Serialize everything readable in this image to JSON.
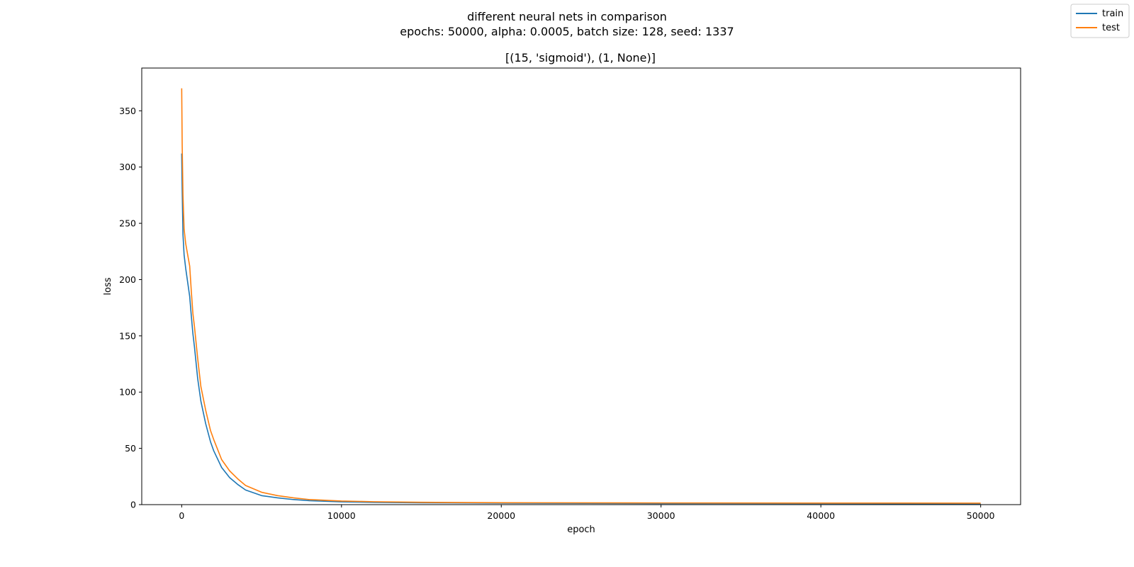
{
  "figure": {
    "suptitle_line1": "different neural nets in comparison",
    "suptitle_line2": "epochs: 50000, alpha: 0.0005, batch size: 128, seed: 1337"
  },
  "legend": {
    "placement": "top-right",
    "items": [
      {
        "label": "train",
        "color": "#1f77b4"
      },
      {
        "label": "test",
        "color": "#ff7f0e"
      }
    ]
  },
  "chart_data": {
    "type": "line",
    "title": "[(15, 'sigmoid'), (1, None)]",
    "xlabel": "epoch",
    "ylabel": "loss",
    "xlim": [
      -2500,
      52500
    ],
    "ylim": [
      0,
      388
    ],
    "xticks": [
      0,
      10000,
      20000,
      30000,
      40000,
      50000
    ],
    "xtick_labels": [
      "0",
      "10000",
      "20000",
      "30000",
      "40000",
      "50000"
    ],
    "yticks": [
      0,
      50,
      100,
      150,
      200,
      250,
      300,
      350
    ],
    "ytick_labels": [
      "0",
      "50",
      "100",
      "150",
      "200",
      "250",
      "300",
      "350"
    ],
    "grid": false,
    "series": [
      {
        "name": "train",
        "color": "#1f77b4",
        "x": [
          0,
          30,
          80,
          150,
          250,
          400,
          500,
          600,
          700,
          800,
          1000,
          1200,
          1500,
          1800,
          2000,
          2500,
          3000,
          3500,
          4000,
          5000,
          6000,
          7000,
          8000,
          10000,
          12000,
          15000,
          20000,
          30000,
          40000,
          50000
        ],
        "y": [
          312,
          280,
          240,
          222,
          210,
          195,
          185,
          168,
          152,
          140,
          112,
          92,
          72,
          56,
          48,
          33,
          24,
          18,
          13,
          8,
          6,
          4.5,
          3.5,
          2.5,
          2,
          1.6,
          1.3,
          1.0,
          0.9,
          0.8
        ]
      },
      {
        "name": "test",
        "color": "#ff7f0e",
        "x": [
          0,
          30,
          80,
          150,
          250,
          400,
          500,
          600,
          700,
          800,
          1000,
          1200,
          1500,
          1800,
          2000,
          2500,
          3000,
          3500,
          4000,
          5000,
          6000,
          7000,
          8000,
          10000,
          12000,
          15000,
          20000,
          30000,
          40000,
          50000
        ],
        "y": [
          370,
          320,
          275,
          245,
          232,
          220,
          212,
          190,
          170,
          158,
          130,
          105,
          84,
          66,
          58,
          40,
          30,
          23,
          17,
          11,
          8,
          6,
          4.5,
          3.2,
          2.6,
          2.1,
          1.7,
          1.5,
          1.4,
          1.3
        ]
      }
    ]
  }
}
